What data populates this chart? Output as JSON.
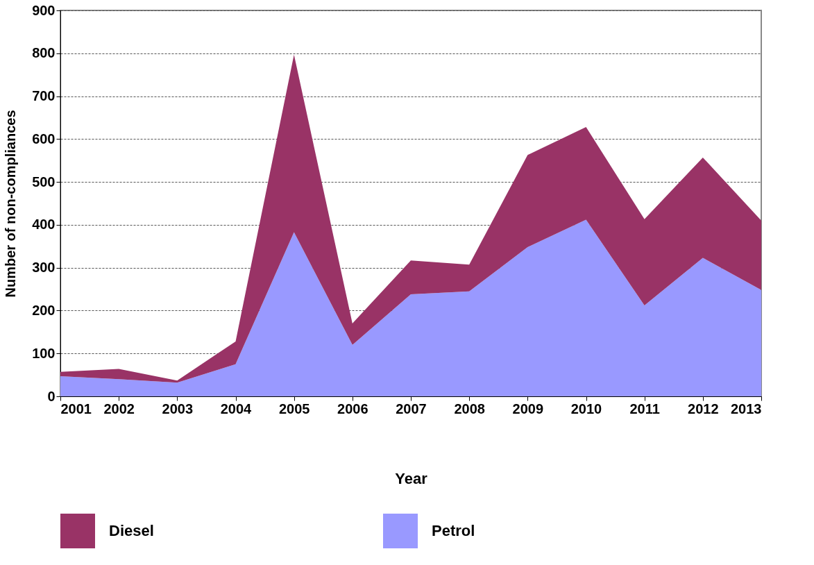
{
  "chart_data": {
    "type": "area",
    "xlabel": "Year",
    "ylabel": "Number of non-compliances",
    "x": [
      2001,
      2002,
      2003,
      2004,
      2005,
      2006,
      2007,
      2008,
      2009,
      2010,
      2011,
      2012,
      2013
    ],
    "stacked": true,
    "series": [
      {
        "name": "Petrol",
        "color": "#9999ff",
        "values": [
          47,
          40,
          32,
          75,
          383,
          120,
          238,
          245,
          348,
          412,
          212,
          323,
          248
        ]
      },
      {
        "name": "Diesel",
        "color": "#993366",
        "values": [
          10,
          24,
          5,
          53,
          414,
          50,
          79,
          62,
          215,
          216,
          201,
          234,
          162
        ]
      }
    ],
    "xlim": [
      2001,
      2013
    ],
    "xticks": [
      2001,
      2002,
      2003,
      2004,
      2005,
      2006,
      2007,
      2008,
      2009,
      2010,
      2011,
      2012,
      2013
    ],
    "ylim": [
      0,
      900
    ],
    "yticks": [
      0,
      100,
      200,
      300,
      400,
      500,
      600,
      700,
      800,
      900
    ],
    "grid": "y",
    "legend": "bottom"
  }
}
